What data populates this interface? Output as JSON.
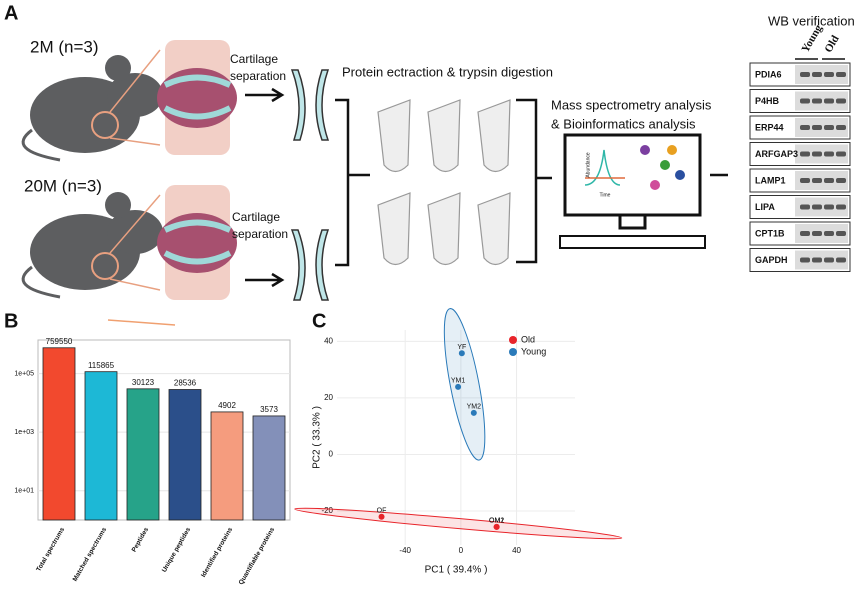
{
  "panel_a": {
    "label": "A",
    "groups": [
      {
        "label": "2M (n=3)",
        "step": [
          "Cartilage",
          "separation"
        ]
      },
      {
        "label": "20M (n=3)",
        "step": [
          "Cartilage",
          "separation"
        ]
      }
    ],
    "digestion": "Protein ectraction & trypsin digestion",
    "analysis": [
      "Mass spectrometry analysis",
      "& Bioinformatics analysis"
    ],
    "monitor_axes": [
      "Abundance",
      "Time"
    ],
    "wb": {
      "title": "WB verification",
      "columns": [
        "Young",
        "Old"
      ],
      "proteins": [
        "PDIA6",
        "P4HB",
        "ERP44",
        "ARFGAP3",
        "LAMP1",
        "LIPA",
        "CPT1B",
        "GAPDH"
      ]
    }
  },
  "chart_data": [
    {
      "type": "bar",
      "label": "B",
      "log": true,
      "grid": true,
      "categories": [
        "Total spectrums",
        "Matched spectrums",
        "Peptides",
        "Unique peptides",
        "Identified proteins",
        "Quantifiable proteins"
      ],
      "values": [
        759550,
        115865,
        30123,
        28536,
        4902,
        3573
      ],
      "colors": [
        "#f2492e",
        "#1db8d6",
        "#26a389",
        "#2b4f8a",
        "#f59c7e",
        "#8390b9"
      ],
      "ylim": [
        1,
        1400000
      ],
      "yticks": [
        {
          "value": 10,
          "label": "1e+01"
        },
        {
          "value": 1000,
          "label": "1e+03"
        },
        {
          "value": 100000,
          "label": "1e+05"
        }
      ]
    },
    {
      "type": "scatter",
      "label": "C",
      "grid": true,
      "legend": "top-right",
      "xlabel": "PC1 ( 39.4% )",
      "ylabel": "PC2 ( 33.3% )",
      "xlim": [
        -89,
        82
      ],
      "ylim": [
        -32,
        44
      ],
      "xticks": [
        -40,
        0,
        40
      ],
      "yticks": [
        -20,
        0,
        20,
        40
      ],
      "series": [
        {
          "name": "Old",
          "color": "#e8242a",
          "x": [
            -57,
            25.7,
            25.7
          ],
          "values": [
            -22,
            -25.6,
            -25.6
          ],
          "labels": [
            "OF",
            "OM1",
            "OM2"
          ]
        },
        {
          "name": "Young",
          "color": "#2a7ab9",
          "x": [
            0.7,
            -2,
            9.3
          ],
          "values": [
            35.8,
            23.9,
            14.7
          ],
          "labels": [
            "YF",
            "YM1",
            "YM2"
          ]
        }
      ]
    }
  ]
}
